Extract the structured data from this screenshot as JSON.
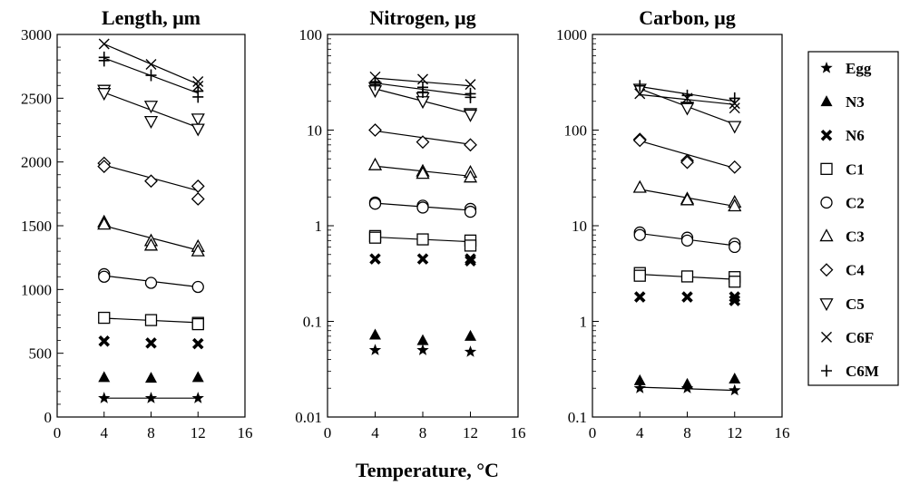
{
  "figure": {
    "xlabel": "Temperature, °C"
  },
  "legend": {
    "placement": "right",
    "entries": [
      {
        "label": "Egg",
        "marker": "star"
      },
      {
        "label": "N3",
        "marker": "filled-triangle"
      },
      {
        "label": "N6",
        "marker": "bold-x"
      },
      {
        "label": "C1",
        "marker": "open-square"
      },
      {
        "label": "C2",
        "marker": "open-circle"
      },
      {
        "label": "C3",
        "marker": "open-triangle"
      },
      {
        "label": "C4",
        "marker": "open-diamond"
      },
      {
        "label": "C5",
        "marker": "open-inverted-triangle"
      },
      {
        "label": "C6F",
        "marker": "thin-x"
      },
      {
        "label": "C6M",
        "marker": "plus"
      }
    ]
  },
  "chart_data": [
    {
      "type": "scatter",
      "title": "Length, μm",
      "yscale": "linear",
      "xlim": [
        0,
        16
      ],
      "ylim": [
        0,
        3000
      ],
      "xticks": [
        0,
        4,
        8,
        12,
        16
      ],
      "yticks": [
        0,
        500,
        1000,
        1500,
        2000,
        2500,
        3000
      ],
      "ytick_labels": [
        "0",
        "500",
        "1000",
        "1500",
        "2000",
        "2500",
        "3000"
      ],
      "x": [
        4,
        8,
        12
      ],
      "series": [
        {
          "name": "Egg",
          "points": [
            [
              4,
              148
            ],
            [
              8,
              148
            ],
            [
              12,
              148
            ]
          ],
          "fit": [
            [
              4,
              148
            ],
            [
              12,
              148
            ]
          ]
        },
        {
          "name": "N3",
          "points": [
            [
              4,
              310
            ],
            [
              8,
              305
            ],
            [
              12,
              310
            ]
          ]
        },
        {
          "name": "N6",
          "points": [
            [
              4,
              595
            ],
            [
              8,
              580
            ],
            [
              12,
              575
            ]
          ]
        },
        {
          "name": "C1",
          "points": [
            [
              4,
              778
            ],
            [
              8,
              760
            ],
            [
              12,
              738
            ],
            [
              12,
              728
            ]
          ],
          "fit": [
            [
              4,
              775
            ],
            [
              12,
              740
            ]
          ]
        },
        {
          "name": "C2",
          "points": [
            [
              4,
              1120
            ],
            [
              4,
              1100
            ],
            [
              8,
              1052
            ],
            [
              12,
              1020
            ]
          ],
          "fit": [
            [
              4,
              1108
            ],
            [
              12,
              1020
            ]
          ]
        },
        {
          "name": "C3",
          "points": [
            [
              4,
              1528
            ],
            [
              4,
              1510
            ],
            [
              8,
              1380
            ],
            [
              8,
              1345
            ],
            [
              12,
              1335
            ],
            [
              12,
              1300
            ]
          ],
          "fit": [
            [
              4,
              1500
            ],
            [
              12,
              1308
            ]
          ]
        },
        {
          "name": "C4",
          "points": [
            [
              4,
              1990
            ],
            [
              4,
              1965
            ],
            [
              8,
              1850
            ],
            [
              12,
              1810
            ],
            [
              12,
              1710
            ]
          ],
          "fit": [
            [
              4,
              1975
            ],
            [
              12,
              1775
            ]
          ]
        },
        {
          "name": "C5",
          "points": [
            [
              4,
              2565
            ],
            [
              4,
              2540
            ],
            [
              8,
              2440
            ],
            [
              8,
              2320
            ],
            [
              12,
              2340
            ],
            [
              12,
              2260
            ]
          ],
          "fit": [
            [
              4,
              2545
            ],
            [
              12,
              2270
            ]
          ]
        },
        {
          "name": "C6F",
          "points": [
            [
              4,
              2925
            ],
            [
              8,
              2765
            ],
            [
              12,
              2630
            ],
            [
              12,
              2595
            ]
          ],
          "fit": [
            [
              4,
              2925
            ],
            [
              12,
              2610
            ]
          ]
        },
        {
          "name": "C6M",
          "points": [
            [
              4,
              2820
            ],
            [
              4,
              2795
            ],
            [
              8,
              2680
            ],
            [
              12,
              2555
            ],
            [
              12,
              2510
            ]
          ],
          "fit": [
            [
              4,
              2815
            ],
            [
              12,
              2540
            ]
          ]
        }
      ]
    },
    {
      "type": "scatter",
      "title": "Nitrogen, μg",
      "yscale": "log",
      "xlim": [
        0,
        16
      ],
      "ylim": [
        0.01,
        100
      ],
      "xticks": [
        0,
        4,
        8,
        12,
        16
      ],
      "yticks": [
        0.01,
        0.1,
        1,
        10,
        100
      ],
      "ytick_labels": [
        "0.01",
        "0.1",
        "1",
        "10",
        "100"
      ],
      "x": [
        4,
        8,
        12
      ],
      "series": [
        {
          "name": "Egg",
          "points": [
            [
              4,
              0.05
            ],
            [
              8,
              0.05
            ],
            [
              12,
              0.048
            ]
          ]
        },
        {
          "name": "N3",
          "points": [
            [
              4,
              0.072
            ],
            [
              8,
              0.063
            ],
            [
              12,
              0.07
            ]
          ]
        },
        {
          "name": "N6",
          "points": [
            [
              4,
              0.45
            ],
            [
              8,
              0.45
            ],
            [
              12,
              0.45
            ],
            [
              12,
              0.43
            ]
          ]
        },
        {
          "name": "C1",
          "points": [
            [
              4,
              0.78
            ],
            [
              4,
              0.75
            ],
            [
              8,
              0.72
            ],
            [
              12,
              0.7
            ],
            [
              12,
              0.62
            ]
          ],
          "fit": [
            [
              4,
              0.76
            ],
            [
              12,
              0.68
            ]
          ]
        },
        {
          "name": "C2",
          "points": [
            [
              4,
              1.75
            ],
            [
              4,
              1.7
            ],
            [
              8,
              1.62
            ],
            [
              8,
              1.55
            ],
            [
              12,
              1.5
            ],
            [
              12,
              1.4
            ]
          ],
          "fit": [
            [
              4,
              1.72
            ],
            [
              12,
              1.45
            ]
          ]
        },
        {
          "name": "C3",
          "points": [
            [
              4,
              4.3
            ],
            [
              8,
              3.7
            ],
            [
              8,
              3.5
            ],
            [
              12,
              3.6
            ],
            [
              12,
              3.2
            ]
          ],
          "fit": [
            [
              4,
              4.2
            ],
            [
              12,
              3.3
            ]
          ]
        },
        {
          "name": "C4",
          "points": [
            [
              4,
              10
            ],
            [
              8,
              7.5
            ],
            [
              12,
              7
            ]
          ],
          "fit": [
            [
              4,
              9.8
            ],
            [
              12,
              7.1
            ]
          ]
        },
        {
          "name": "C5",
          "points": [
            [
              4,
              28
            ],
            [
              4,
              26
            ],
            [
              8,
              22
            ],
            [
              8,
              20
            ],
            [
              12,
              15
            ],
            [
              12,
              14.5
            ]
          ],
          "fit": [
            [
              4,
              27
            ],
            [
              12,
              15
            ]
          ]
        },
        {
          "name": "C6F",
          "points": [
            [
              4,
              36
            ],
            [
              8,
              34
            ],
            [
              12,
              30
            ]
          ],
          "fit": [
            [
              4,
              35
            ],
            [
              12,
              29
            ]
          ]
        },
        {
          "name": "C6M",
          "points": [
            [
              4,
              32
            ],
            [
              4,
              30
            ],
            [
              8,
              28
            ],
            [
              8,
              25
            ],
            [
              12,
              24
            ],
            [
              12,
              22
            ]
          ],
          "fit": [
            [
              4,
              31
            ],
            [
              12,
              23
            ]
          ]
        }
      ]
    },
    {
      "type": "scatter",
      "title": "Carbon, μg",
      "yscale": "log",
      "xlim": [
        0,
        16
      ],
      "ylim": [
        0.1,
        1000
      ],
      "xticks": [
        0,
        4,
        8,
        12,
        16
      ],
      "yticks": [
        0.1,
        1,
        10,
        100,
        1000
      ],
      "ytick_labels": [
        "0.1",
        "1",
        "10",
        "100",
        "1000"
      ],
      "x": [
        4,
        8,
        12
      ],
      "series": [
        {
          "name": "Egg",
          "points": [
            [
              4,
              0.2
            ],
            [
              8,
              0.2
            ],
            [
              12,
              0.19
            ]
          ],
          "fit": [
            [
              4,
              0.205
            ],
            [
              12,
              0.19
            ]
          ]
        },
        {
          "name": "N3",
          "points": [
            [
              4,
              0.24
            ],
            [
              8,
              0.22
            ],
            [
              12,
              0.25
            ]
          ]
        },
        {
          "name": "N6",
          "points": [
            [
              4,
              1.8
            ],
            [
              8,
              1.8
            ],
            [
              12,
              1.8
            ],
            [
              12,
              1.65
            ]
          ]
        },
        {
          "name": "C1",
          "points": [
            [
              4,
              3.2
            ],
            [
              4,
              3.0
            ],
            [
              8,
              2.95
            ],
            [
              12,
              2.9
            ],
            [
              12,
              2.6
            ]
          ],
          "fit": [
            [
              4,
              3.1
            ],
            [
              12,
              2.75
            ]
          ]
        },
        {
          "name": "C2",
          "points": [
            [
              4,
              8.5
            ],
            [
              4,
              8.0
            ],
            [
              8,
              7.5
            ],
            [
              8,
              7.0
            ],
            [
              12,
              6.5
            ],
            [
              12,
              6.0
            ]
          ],
          "fit": [
            [
              4,
              8.3
            ],
            [
              12,
              6.2
            ]
          ]
        },
        {
          "name": "C3",
          "points": [
            [
              4,
              25
            ],
            [
              8,
              19
            ],
            [
              8,
              18.5
            ],
            [
              12,
              17.5
            ],
            [
              12,
              16
            ]
          ],
          "fit": [
            [
              4,
              24
            ],
            [
              12,
              16
            ]
          ]
        },
        {
          "name": "C4",
          "points": [
            [
              4,
              80
            ],
            [
              4,
              78
            ],
            [
              8,
              48
            ],
            [
              8,
              46
            ],
            [
              12,
              41
            ]
          ],
          "fit": [
            [
              4,
              77
            ],
            [
              12,
              40
            ]
          ]
        },
        {
          "name": "C5",
          "points": [
            [
              4,
              270
            ],
            [
              8,
              175
            ],
            [
              8,
              170
            ],
            [
              12,
              110
            ]
          ],
          "fit": [
            [
              4,
              270
            ],
            [
              12,
              115
            ]
          ]
        },
        {
          "name": "C6F",
          "points": [
            [
              4,
              240
            ],
            [
              8,
              215
            ],
            [
              12,
              190
            ],
            [
              12,
              170
            ]
          ],
          "fit": [
            [
              4,
              235
            ],
            [
              12,
              185
            ]
          ]
        },
        {
          "name": "C6M",
          "points": [
            [
              4,
              290
            ],
            [
              8,
              230
            ],
            [
              12,
              215
            ]
          ],
          "fit": [
            [
              4,
              285
            ],
            [
              12,
              200
            ]
          ]
        }
      ]
    }
  ]
}
